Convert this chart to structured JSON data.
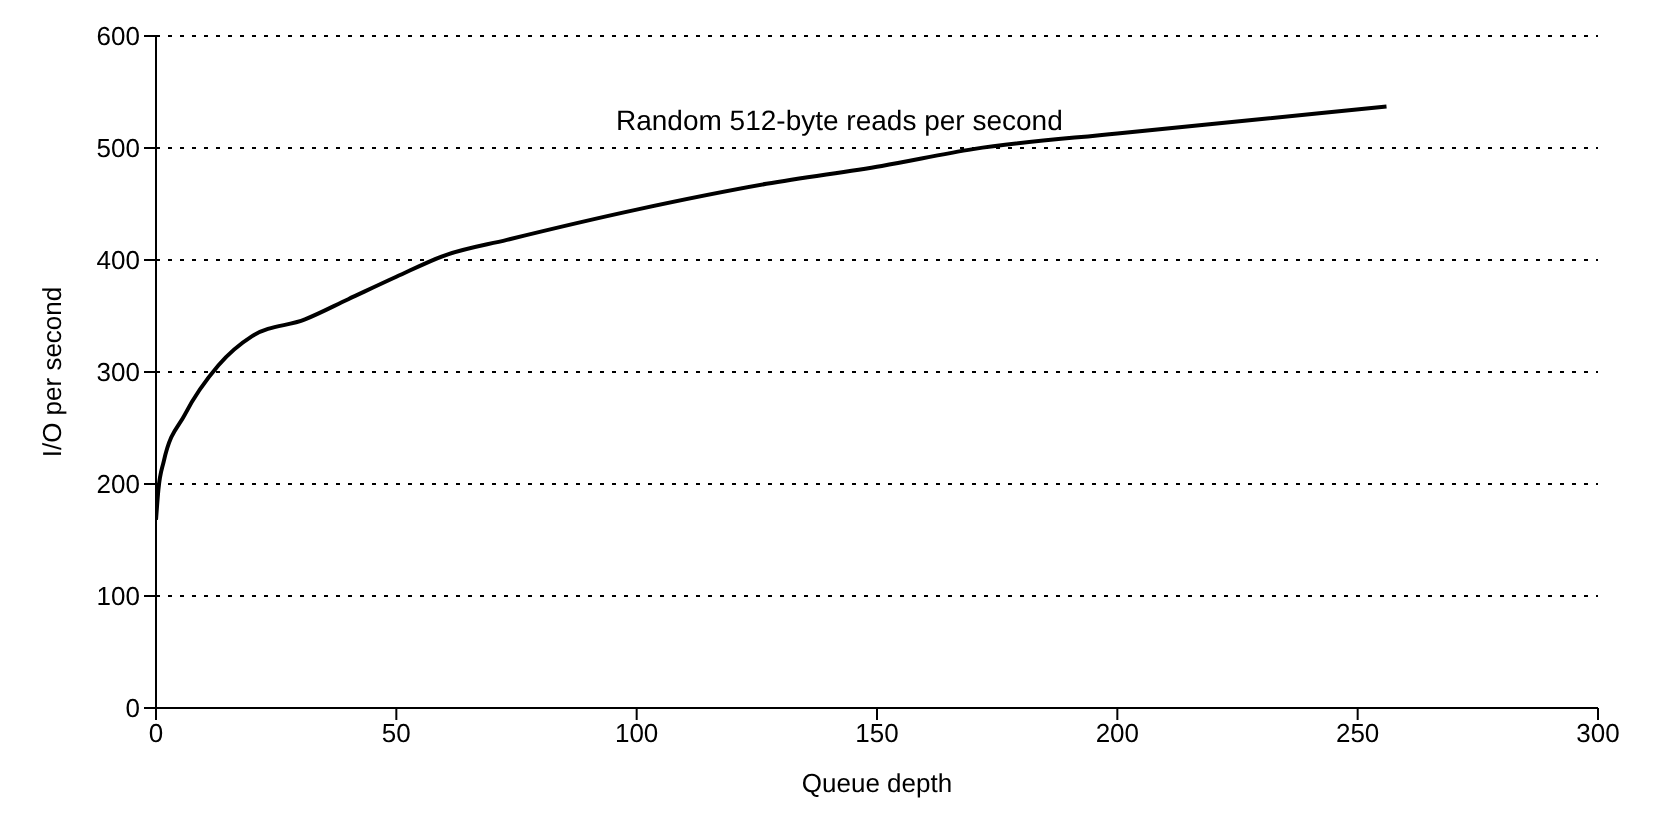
{
  "chart_data": {
    "type": "line",
    "xlabel": "Queue depth",
    "ylabel": "I/O per second",
    "x": [
      0,
      0.5,
      1.6,
      6,
      13,
      20,
      31,
      40,
      50,
      60,
      73,
      100,
      127,
      151,
      170,
      200,
      228,
      256
    ],
    "values": [
      168,
      195,
      220,
      262,
      306,
      332,
      347,
      365,
      385,
      404,
      418,
      445,
      468,
      484,
      499,
      513,
      525,
      537
    ],
    "color": "#000000",
    "xlim": [
      0,
      300
    ],
    "xticks": [
      0,
      50,
      100,
      150,
      200,
      250,
      300
    ],
    "ylim": [
      0,
      600
    ],
    "yticks": [
      0,
      100,
      200,
      300,
      400,
      500,
      600
    ],
    "grid": "y",
    "line_style": "solid",
    "marker": "none",
    "annotations": [
      "Random 512-byte reads per second"
    ]
  }
}
